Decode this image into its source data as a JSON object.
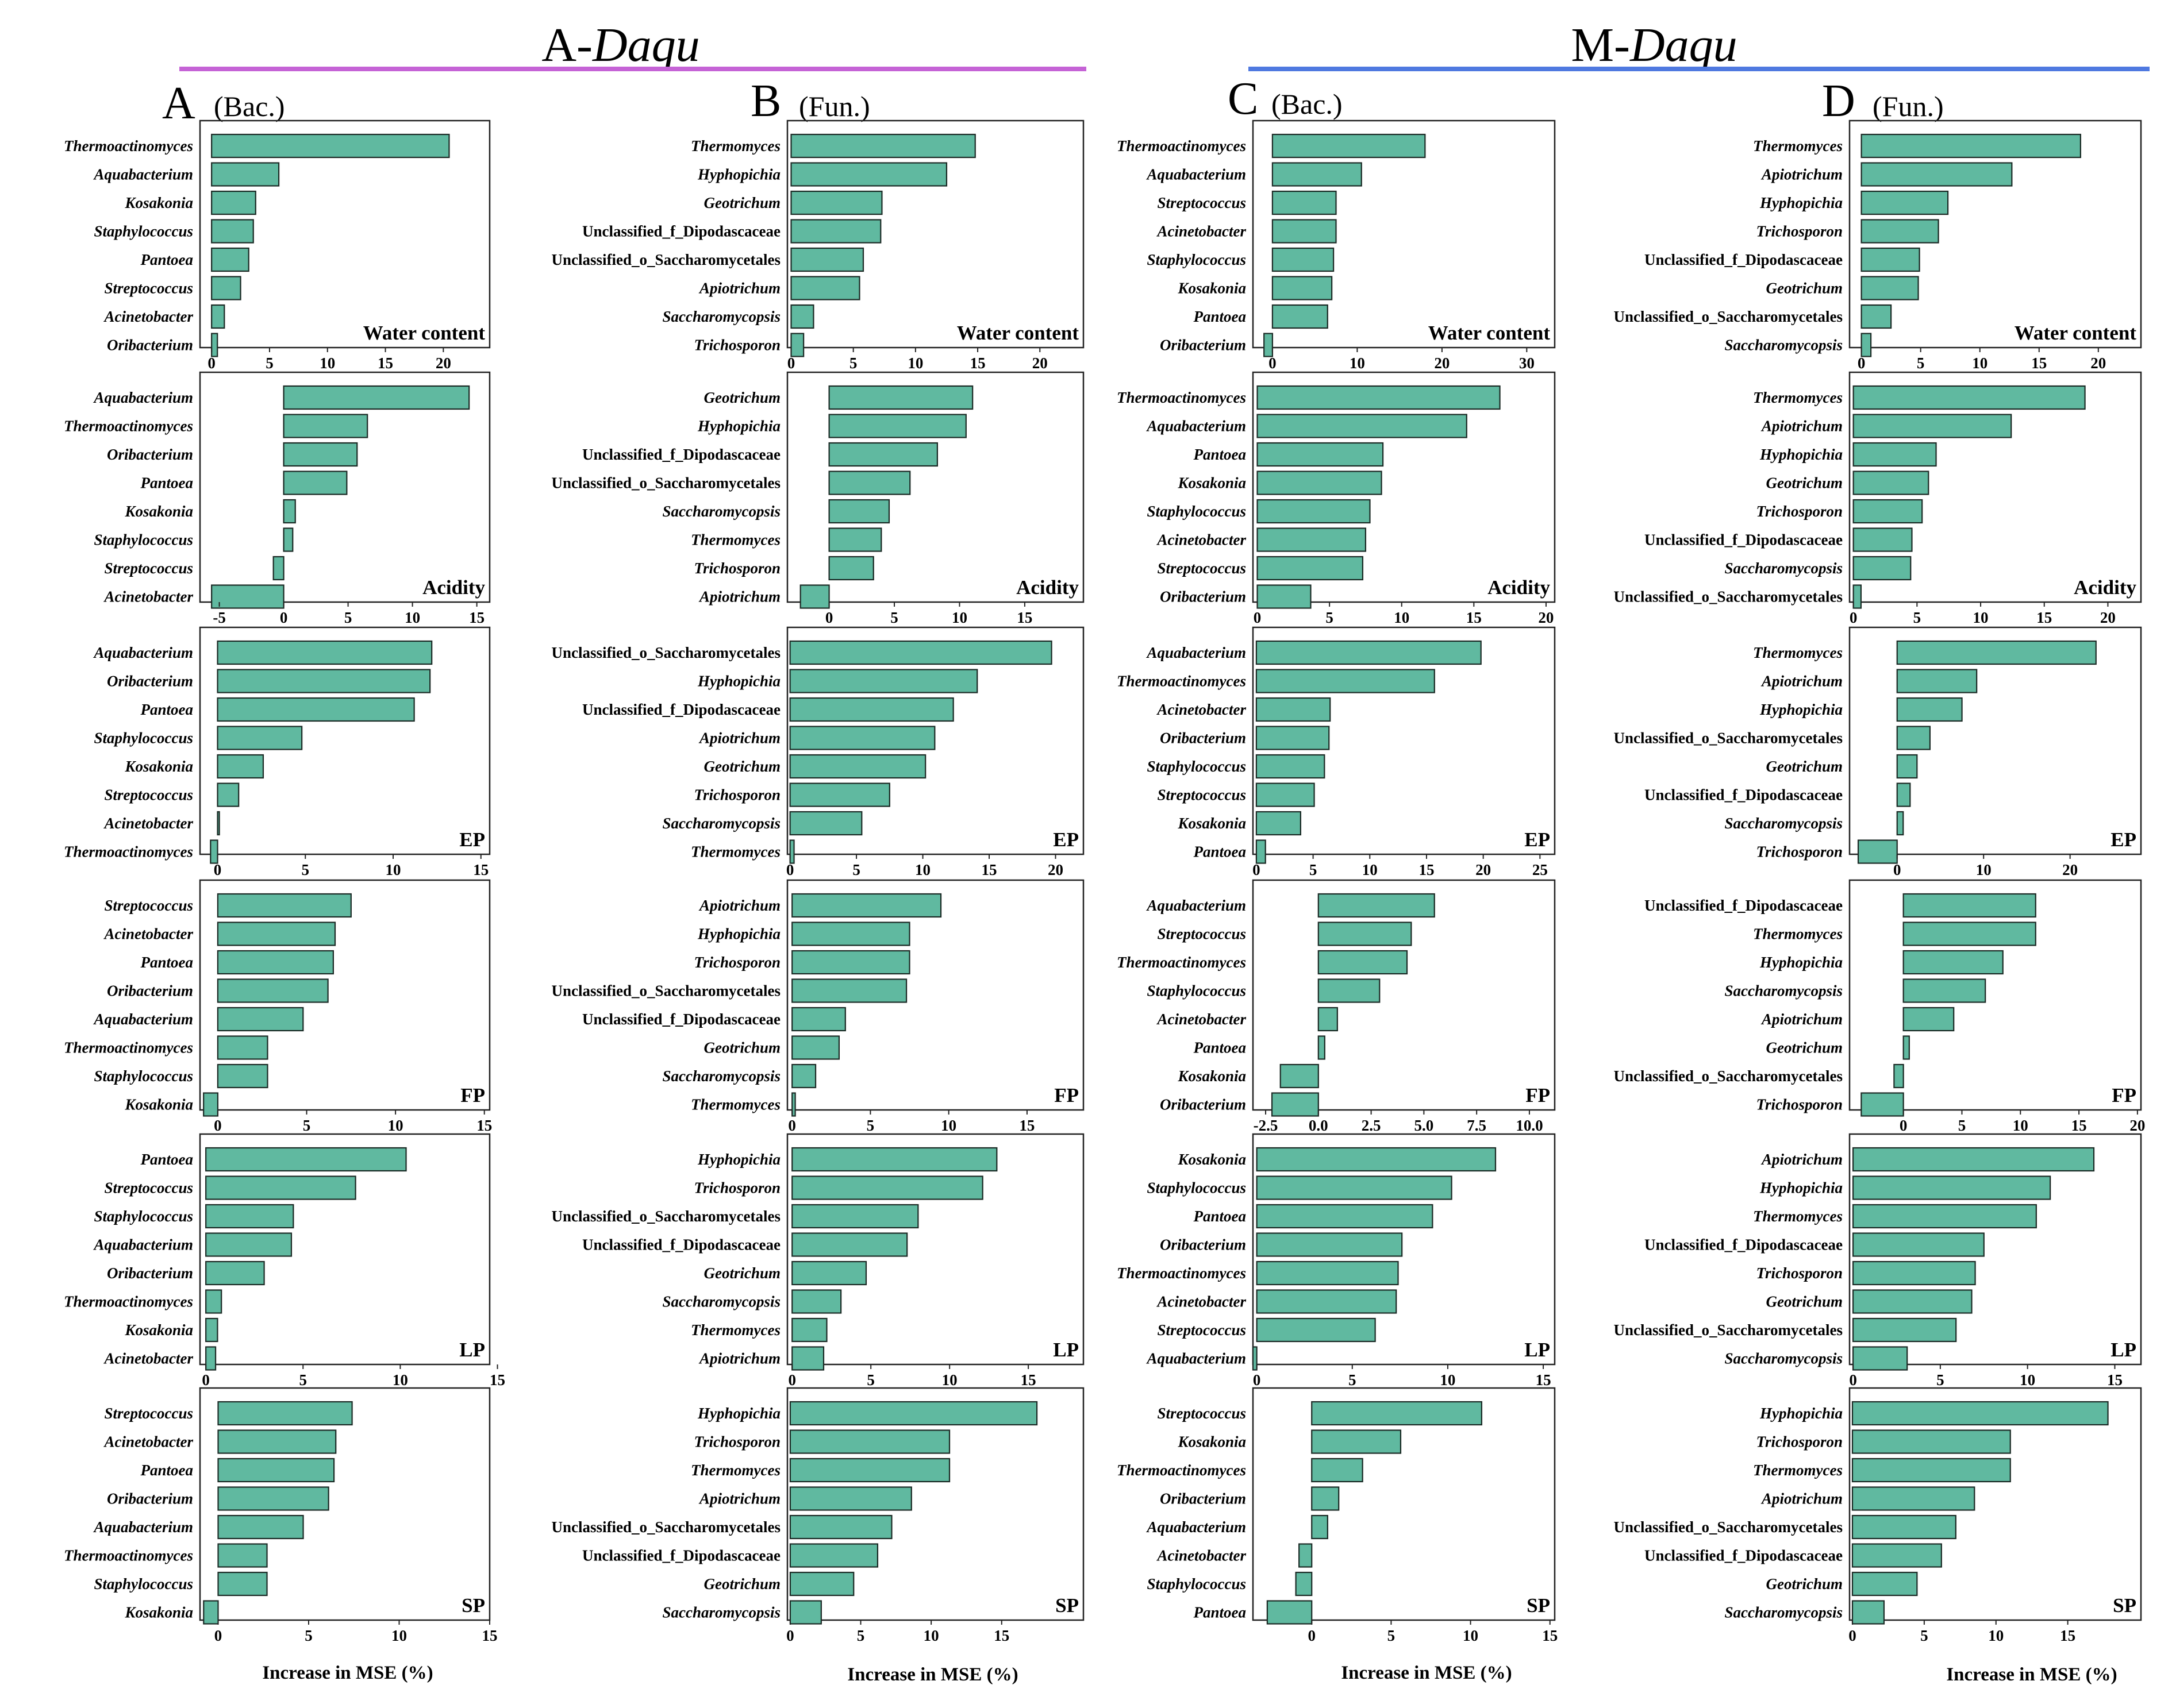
{
  "figure": {
    "groups": [
      {
        "prefix": "A-",
        "name": "Daqu",
        "rule_color": "#c563d6"
      },
      {
        "prefix": "M-",
        "name": "Daqu",
        "rule_color": "#4f79e0"
      }
    ],
    "columns": [
      {
        "letter": "A",
        "kind": "(Bac.)"
      },
      {
        "letter": "B",
        "kind": "(Fun.)"
      },
      {
        "letter": "C",
        "kind": "(Bac.)"
      },
      {
        "letter": "D",
        "kind": "(Fun.)"
      }
    ],
    "xlabel": "Increase in MSE (%)",
    "bar_color": "#60b9a0"
  },
  "chart_data": [
    {
      "type": "bar",
      "orientation": "horizontal",
      "column": "A",
      "title": "Water content",
      "categories": [
        "Thermoactinomyces",
        "Aquabacterium",
        "Kosakonia",
        "Staphylococcus",
        "Pantoea",
        "Streptococcus",
        "Acinetobacter",
        "Oribacterium"
      ],
      "values": [
        20.5,
        5.8,
        3.8,
        3.6,
        3.2,
        2.5,
        1.1,
        0.5
      ],
      "xlim": [
        -1,
        24
      ],
      "xticks": [
        "0",
        "5",
        "10",
        "15",
        "20"
      ]
    },
    {
      "type": "bar",
      "orientation": "horizontal",
      "column": "A",
      "title": "Acidity",
      "categories": [
        "Aquabacterium",
        "Thermoactinomyces",
        "Oribacterium",
        "Pantoea",
        "Kosakonia",
        "Staphylococcus",
        "Streptococcus",
        "Acinetobacter"
      ],
      "values": [
        14.4,
        6.5,
        5.7,
        4.9,
        0.9,
        0.7,
        -0.8,
        -5.6
      ],
      "xlim": [
        -6.5,
        16
      ],
      "xticks": [
        "-5",
        "0",
        "5",
        "10",
        "15"
      ]
    },
    {
      "type": "bar",
      "orientation": "horizontal",
      "column": "A",
      "title": "EP",
      "categories": [
        "Aquabacterium",
        "Oribacterium",
        "Pantoea",
        "Staphylococcus",
        "Kosakonia",
        "Streptococcus",
        "Acinetobacter",
        "Thermoactinomyces"
      ],
      "values": [
        12.2,
        12.1,
        11.2,
        4.8,
        2.6,
        1.2,
        0.1,
        -0.4
      ],
      "xlim": [
        -1,
        15.5
      ],
      "xticks": [
        "0",
        "5",
        "10",
        "15"
      ]
    },
    {
      "type": "bar",
      "orientation": "horizontal",
      "column": "A",
      "title": "FP",
      "categories": [
        "Streptococcus",
        "Acinetobacter",
        "Pantoea",
        "Oribacterium",
        "Aquabacterium",
        "Thermoactinomyces",
        "Staphylococcus",
        "Kosakonia"
      ],
      "values": [
        7.5,
        6.6,
        6.5,
        6.2,
        4.8,
        2.8,
        2.8,
        -0.8
      ],
      "xlim": [
        -1,
        15.3
      ],
      "xticks": [
        "0",
        "5",
        "10",
        "15"
      ]
    },
    {
      "type": "bar",
      "orientation": "horizontal",
      "column": "A",
      "title": "LP",
      "categories": [
        "Pantoea",
        "Streptococcus",
        "Staphylococcus",
        "Aquabacterium",
        "Oribacterium",
        "Thermoactinomyces",
        "Kosakonia",
        "Acinetobacter"
      ],
      "values": [
        10.3,
        7.7,
        4.5,
        4.4,
        3.0,
        0.8,
        0.6,
        0.5
      ],
      "xlim": [
        -0.3,
        14.6
      ],
      "xticks": [
        "0",
        "5",
        "10",
        "15"
      ]
    },
    {
      "type": "bar",
      "orientation": "horizontal",
      "column": "A",
      "title": "SP",
      "categories": [
        "Streptococcus",
        "Acinetobacter",
        "Pantoea",
        "Oribacterium",
        "Aquabacterium",
        "Thermoactinomyces",
        "Staphylococcus",
        "Kosakonia"
      ],
      "values": [
        7.4,
        6.5,
        6.4,
        6.1,
        4.7,
        2.7,
        2.7,
        -0.8
      ],
      "xlim": [
        -1,
        15
      ],
      "xticks": [
        "0",
        "5",
        "10",
        "15"
      ]
    },
    {
      "type": "bar",
      "orientation": "horizontal",
      "column": "B",
      "title": "Water content",
      "categories": [
        "Thermomyces",
        "Hyphopichia",
        "Geotrichum",
        "Unclassified_f_Dipodascaceae",
        "Unclassified_o_Saccharomycetales",
        "Apiotrichum",
        "Saccharomycopsis",
        "Trichosporon"
      ],
      "values": [
        14.8,
        12.5,
        7.3,
        7.2,
        5.8,
        5.5,
        1.8,
        1.0
      ],
      "xlim": [
        -0.3,
        23.5
      ],
      "xticks": [
        "0",
        "5",
        "10",
        "15",
        "20"
      ]
    },
    {
      "type": "bar",
      "orientation": "horizontal",
      "column": "B",
      "title": "Acidity",
      "categories": [
        "Geotrichum",
        "Hyphopichia",
        "Unclassified_f_Dipodascaceae",
        "Unclassified_o_Saccharomycetales",
        "Saccharomycopsis",
        "Thermomyces",
        "Trichosporon",
        "Apiotrichum"
      ],
      "values": [
        11.0,
        10.5,
        8.3,
        6.2,
        4.6,
        4.0,
        3.4,
        -2.2
      ],
      "xlim": [
        -3.2,
        19.5
      ],
      "xticks": [
        "0",
        "5",
        "10",
        "15"
      ]
    },
    {
      "type": "bar",
      "orientation": "horizontal",
      "column": "B",
      "title": "EP",
      "categories": [
        "Unclassified_o_Saccharomycetales",
        "Hyphopichia",
        "Unclassified_f_Dipodascaceae",
        "Apiotrichum",
        "Geotrichum",
        "Trichosporon",
        "Saccharomycopsis",
        "Thermomyces"
      ],
      "values": [
        19.7,
        14.1,
        12.3,
        10.9,
        10.2,
        7.5,
        5.4,
        0.3
      ],
      "xlim": [
        -0.2,
        22.1
      ],
      "xticks": [
        "0",
        "5",
        "10",
        "15",
        "20"
      ]
    },
    {
      "type": "bar",
      "orientation": "horizontal",
      "column": "B",
      "title": "FP",
      "categories": [
        "Apiotrichum",
        "Hyphopichia",
        "Trichosporon",
        "Unclassified_o_Saccharomycetales",
        "Unclassified_f_Dipodascaceae",
        "Geotrichum",
        "Saccharomycopsis",
        "Thermomyces"
      ],
      "values": [
        9.5,
        7.5,
        7.5,
        7.3,
        3.4,
        3.0,
        1.5,
        0.2
      ],
      "xlim": [
        -0.3,
        18.6
      ],
      "xticks": [
        "0",
        "5",
        "10",
        "15"
      ]
    },
    {
      "type": "bar",
      "orientation": "horizontal",
      "column": "B",
      "title": "LP",
      "categories": [
        "Hyphopichia",
        "Trichosporon",
        "Unclassified_o_Saccharomycetales",
        "Unclassified_f_Dipodascaceae",
        "Geotrichum",
        "Saccharomycopsis",
        "Thermomyces",
        "Apiotrichum"
      ],
      "values": [
        13.0,
        12.1,
        8.0,
        7.3,
        4.7,
        3.1,
        2.2,
        2.0
      ],
      "xlim": [
        -0.3,
        18.5
      ],
      "xticks": [
        "0",
        "5",
        "10",
        "15"
      ]
    },
    {
      "type": "bar",
      "orientation": "horizontal",
      "column": "B",
      "title": "SP",
      "categories": [
        "Hyphopichia",
        "Trichosporon",
        "Thermomyces",
        "Apiotrichum",
        "Unclassified_o_Saccharomycetales",
        "Unclassified_f_Dipodascaceae",
        "Geotrichum",
        "Saccharomycopsis"
      ],
      "values": [
        17.5,
        11.3,
        11.3,
        8.6,
        7.2,
        6.2,
        4.5,
        2.2
      ],
      "xlim": [
        -0.2,
        20.8
      ],
      "xticks": [
        "0",
        "5",
        "10",
        "15"
      ]
    },
    {
      "type": "bar",
      "orientation": "horizontal",
      "column": "C",
      "title": "Water content",
      "categories": [
        "Thermoactinomyces",
        "Aquabacterium",
        "Streptococcus",
        "Acinetobacter",
        "Staphylococcus",
        "Kosakonia",
        "Pantoea",
        "Oribacterium"
      ],
      "values": [
        18.0,
        10.5,
        7.5,
        7.5,
        7.2,
        7.0,
        6.5,
        -1.0
      ],
      "xlim": [
        -2.3,
        33.3
      ],
      "xticks": [
        "0",
        "10",
        "20",
        "30"
      ]
    },
    {
      "type": "bar",
      "orientation": "horizontal",
      "column": "C",
      "title": "Acidity",
      "categories": [
        "Thermoactinomyces",
        "Aquabacterium",
        "Pantoea",
        "Kosakonia",
        "Staphylococcus",
        "Acinetobacter",
        "Streptococcus",
        "Oribacterium"
      ],
      "values": [
        16.8,
        14.5,
        8.7,
        8.6,
        7.8,
        7.5,
        7.3,
        3.7
      ],
      "xlim": [
        -0.3,
        20.6
      ],
      "xticks": [
        "0",
        "5",
        "10",
        "15",
        "20"
      ]
    },
    {
      "type": "bar",
      "orientation": "horizontal",
      "column": "C",
      "title": "EP",
      "categories": [
        "Aquabacterium",
        "Thermoactinomyces",
        "Acinetobacter",
        "Oribacterium",
        "Staphylococcus",
        "Streptococcus",
        "Kosakonia",
        "Pantoea"
      ],
      "values": [
        19.8,
        15.7,
        6.5,
        6.4,
        6.0,
        5.1,
        3.9,
        0.8
      ],
      "xlim": [
        -0.3,
        26.3
      ],
      "xticks": [
        "0",
        "5",
        "10",
        "15",
        "20",
        "25"
      ]
    },
    {
      "type": "bar",
      "orientation": "horizontal",
      "column": "C",
      "title": "FP",
      "categories": [
        "Aquabacterium",
        "Streptococcus",
        "Thermoactinomyces",
        "Staphylococcus",
        "Acinetobacter",
        "Pantoea",
        "Kosakonia",
        "Oribacterium"
      ],
      "values": [
        5.5,
        4.4,
        4.2,
        2.9,
        0.9,
        0.3,
        -1.8,
        -2.2
      ],
      "xlim": [
        -3.1,
        11.2
      ],
      "xticks": [
        "-2.5",
        "0.0",
        "2.5",
        "5.0",
        "7.5",
        "10.0"
      ]
    },
    {
      "type": "bar",
      "orientation": "horizontal",
      "column": "C",
      "title": "LP",
      "categories": [
        "Kosakonia",
        "Staphylococcus",
        "Pantoea",
        "Oribacterium",
        "Thermoactinomyces",
        "Acinetobacter",
        "Streptococcus",
        "Aquabacterium"
      ],
      "values": [
        12.5,
        10.2,
        9.2,
        7.6,
        7.4,
        7.3,
        6.2,
        -0.2
      ],
      "xlim": [
        -0.2,
        15.6
      ],
      "xticks": [
        "0",
        "5",
        "10",
        "15"
      ]
    },
    {
      "type": "bar",
      "orientation": "horizontal",
      "column": "C",
      "title": "SP",
      "categories": [
        "Streptococcus",
        "Kosakonia",
        "Thermoactinomyces",
        "Oribacterium",
        "Aquabacterium",
        "Acinetobacter",
        "Staphylococcus",
        "Pantoea"
      ],
      "values": [
        10.7,
        5.6,
        3.2,
        1.7,
        1.0,
        -0.8,
        -1.0,
        -2.8
      ],
      "xlim": [
        -3.7,
        15.3
      ],
      "xticks": [
        "0",
        "5",
        "10",
        "15"
      ]
    },
    {
      "type": "bar",
      "orientation": "horizontal",
      "column": "D",
      "title": "Water content",
      "categories": [
        "Thermomyces",
        "Apiotrichum",
        "Hyphopichia",
        "Trichosporon",
        "Unclassified_f_Dipodascaceae",
        "Geotrichum",
        "Unclassified_o_Saccharomycetales",
        "Saccharomycopsis"
      ],
      "values": [
        18.5,
        12.7,
        7.3,
        6.5,
        4.9,
        4.8,
        2.5,
        0.8
      ],
      "xlim": [
        -1,
        23.6
      ],
      "xticks": [
        "0",
        "5",
        "10",
        "15",
        "20"
      ]
    },
    {
      "type": "bar",
      "orientation": "horizontal",
      "column": "D",
      "title": "Acidity",
      "categories": [
        "Thermomyces",
        "Apiotrichum",
        "Hyphopichia",
        "Geotrichum",
        "Trichosporon",
        "Unclassified_f_Dipodascaceae",
        "Saccharomycopsis",
        "Unclassified_o_Saccharomycetales"
      ],
      "values": [
        18.2,
        12.4,
        6.5,
        5.9,
        5.4,
        4.6,
        4.5,
        0.6
      ],
      "xlim": [
        -0.3,
        22.6
      ],
      "xticks": [
        "0",
        "5",
        "10",
        "15",
        "20"
      ]
    },
    {
      "type": "bar",
      "orientation": "horizontal",
      "column": "D",
      "title": "EP",
      "categories": [
        "Thermomyces",
        "Apiotrichum",
        "Hyphopichia",
        "Unclassified_o_Saccharomycetales",
        "Geotrichum",
        "Unclassified_f_Dipodascaceae",
        "Saccharomycopsis",
        "Trichosporon"
      ],
      "values": [
        23.0,
        9.2,
        7.5,
        3.8,
        2.3,
        1.5,
        0.7,
        -4.5
      ],
      "xlim": [
        -5.5,
        28.2
      ],
      "xticks": [
        "0",
        "10",
        "20"
      ]
    },
    {
      "type": "bar",
      "orientation": "horizontal",
      "column": "D",
      "title": "FP",
      "categories": [
        "Unclassified_f_Dipodascaceae",
        "Thermomyces",
        "Hyphopichia",
        "Saccharomycopsis",
        "Apiotrichum",
        "Geotrichum",
        "Unclassified_o_Saccharomycetales",
        "Trichosporon"
      ],
      "values": [
        11.3,
        11.3,
        8.5,
        7.0,
        4.3,
        0.5,
        -0.8,
        -3.6
      ],
      "xlim": [
        -4.6,
        20.3
      ],
      "xticks": [
        "0",
        "5",
        "10",
        "15",
        "20"
      ]
    },
    {
      "type": "bar",
      "orientation": "horizontal",
      "column": "D",
      "title": "LP",
      "categories": [
        "Apiotrichum",
        "Hyphopichia",
        "Thermomyces",
        "Unclassified_f_Dipodascaceae",
        "Trichosporon",
        "Geotrichum",
        "Unclassified_o_Saccharomycetales",
        "Saccharomycopsis"
      ],
      "values": [
        13.8,
        11.3,
        10.5,
        7.5,
        7.0,
        6.8,
        5.9,
        3.1
      ],
      "xlim": [
        -0.2,
        16.5
      ],
      "xticks": [
        "0",
        "5",
        "10",
        "15"
      ]
    },
    {
      "type": "bar",
      "orientation": "horizontal",
      "column": "D",
      "title": "SP",
      "categories": [
        "Hyphopichia",
        "Trichosporon",
        "Thermomyces",
        "Apiotrichum",
        "Unclassified_o_Saccharomycetales",
        "Unclassified_f_Dipodascaceae",
        "Geotrichum",
        "Saccharomycopsis"
      ],
      "values": [
        17.8,
        11.0,
        11.0,
        8.5,
        7.2,
        6.2,
        4.5,
        2.2
      ],
      "xlim": [
        -0.2,
        20.1
      ],
      "xticks": [
        "0",
        "5",
        "10",
        "15"
      ]
    }
  ]
}
